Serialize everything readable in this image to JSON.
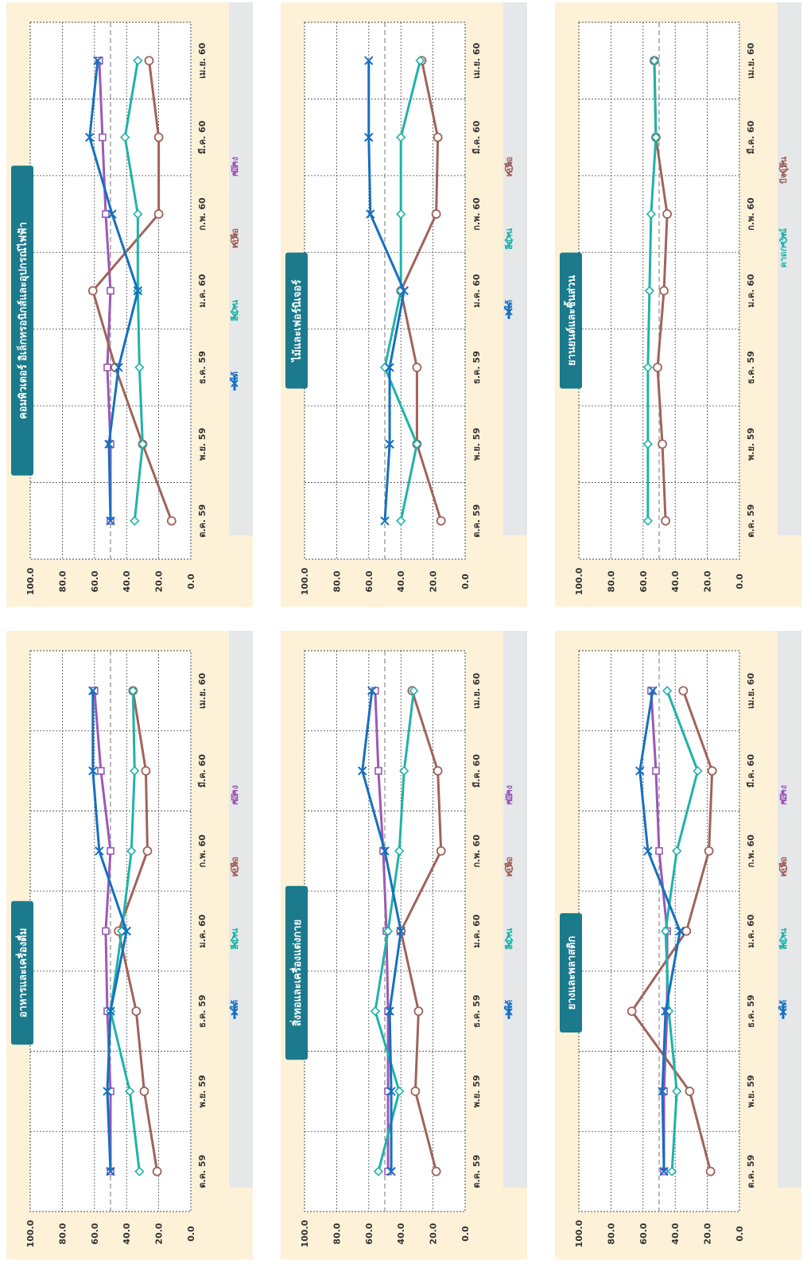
{
  "layout_note": "",
  "colors": {
    "panel_bg": "#fdf1d8",
    "legend_bar": "#e6e7e9",
    "title_bg": "#1b7a8c",
    "grid": "#4a4a4a",
    "threshold": "#8c8c8c",
    "central": "#9b59b6",
    "north": "#a0635a",
    "northeast": "#1fb3a8",
    "south": "#1570c0",
    "present": "#a0635a",
    "future": "#1fb3a8"
  },
  "chart_data": [
    {
      "type": "line",
      "title": "อาหารและเครื่องดื่ม",
      "categories": [
        "ต.ค. 59",
        "พ.ย. 59",
        "ธ.ค. 59",
        "ม.ค. 60",
        "ก.พ. 60",
        "มี.ค. 60",
        "เม.ย. 60"
      ],
      "y_ticks": [
        "0.0",
        "20.0",
        "40.0",
        "60.0",
        "80.0",
        "100.0"
      ],
      "ylim": [
        0,
        100
      ],
      "threshold": 50,
      "legend_position": "bottom",
      "series": [
        {
          "name": "กลาง",
          "color_key": "central",
          "marker": "square",
          "values": [
            50,
            50,
            52,
            53,
            50,
            56,
            60
          ]
        },
        {
          "name": "เหนือ",
          "color_key": "north",
          "marker": "circle",
          "values": [
            21,
            29,
            34,
            45,
            27,
            28,
            36
          ]
        },
        {
          "name": "อีสาน",
          "color_key": "northeast",
          "marker": "diamond",
          "values": [
            32,
            38,
            50,
            43,
            37,
            35,
            36
          ]
        },
        {
          "name": "ใต้",
          "color_key": "south",
          "marker": "x",
          "values": [
            50,
            52,
            50,
            40,
            57,
            61,
            61
          ]
        }
      ]
    },
    {
      "type": "line",
      "title": "คอมพิวเตอร์ อิเล็กทรอนิกส์และอุปกรณ์ไฟฟ้า",
      "categories": [
        "ต.ค. 59",
        "พ.ย. 59",
        "ธ.ค. 59",
        "ม.ค. 60",
        "ก.พ. 60",
        "มี.ค. 60",
        "เม.ย. 60"
      ],
      "y_ticks": [
        "0.0",
        "20.0",
        "40.0",
        "60.0",
        "80.0",
        "100.0"
      ],
      "ylim": [
        0,
        100
      ],
      "threshold": 50,
      "legend_position": "bottom",
      "series": [
        {
          "name": "กลาง",
          "color_key": "central",
          "marker": "square",
          "values": [
            50,
            50,
            52,
            50,
            53,
            55,
            57
          ]
        },
        {
          "name": "เหนือ",
          "color_key": "north",
          "marker": "circle",
          "values": [
            12,
            30,
            47,
            61,
            20,
            20,
            26
          ]
        },
        {
          "name": "อีสาน",
          "color_key": "northeast",
          "marker": "diamond",
          "values": [
            35,
            30,
            32,
            33,
            33,
            41,
            33
          ]
        },
        {
          "name": "ใต้",
          "color_key": "south",
          "marker": "x",
          "values": [
            50,
            51,
            45,
            33,
            49,
            63,
            58
          ]
        }
      ]
    },
    {
      "type": "line",
      "title": "สิ่งทอและเครื่องแต่งกาย",
      "categories": [
        "ต.ค. 59",
        "พ.ย. 59",
        "ธ.ค. 59",
        "ม.ค. 60",
        "ก.พ. 60",
        "มี.ค. 60",
        "เม.ย. 60"
      ],
      "y_ticks": [
        "0.0",
        "20.0",
        "40.0",
        "60.0",
        "80.0",
        "100.0"
      ],
      "ylim": [
        0,
        100
      ],
      "threshold": 50,
      "legend_position": "bottom",
      "series": [
        {
          "name": "กลาง",
          "color_key": "central",
          "marker": "square",
          "values": [
            48,
            48,
            48,
            49,
            51,
            54,
            56
          ]
        },
        {
          "name": "เหนือ",
          "color_key": "north",
          "marker": "circle",
          "values": [
            18,
            31,
            29,
            40,
            15,
            17,
            33
          ]
        },
        {
          "name": "อีสาน",
          "color_key": "northeast",
          "marker": "diamond",
          "values": [
            54,
            41,
            56,
            48,
            41,
            38,
            32
          ]
        },
        {
          "name": "ใต้",
          "color_key": "south",
          "marker": "x",
          "values": [
            46,
            46,
            47,
            40,
            50,
            64,
            58
          ]
        }
      ]
    },
    {
      "type": "line",
      "title": "ไม้และเฟอร์นิเจอร์",
      "categories": [
        "ต.ค. 59",
        "พ.ย. 59",
        "ธ.ค. 59",
        "ม.ค. 60",
        "ก.พ. 60",
        "มี.ค. 60",
        "เม.ย. 60"
      ],
      "y_ticks": [
        "0.0",
        "20.0",
        "40.0",
        "60.0",
        "80.0",
        "100.0"
      ],
      "ylim": [
        0,
        100
      ],
      "threshold": 50,
      "legend_position": "bottom",
      "series": [
        {
          "name": "เหนือ",
          "color_key": "north",
          "marker": "circle",
          "values": [
            15,
            30,
            30,
            40,
            18,
            17,
            27
          ]
        },
        {
          "name": "อีสาน",
          "color_key": "northeast",
          "marker": "diamond",
          "values": [
            40,
            30,
            50,
            40,
            40,
            40,
            28
          ]
        },
        {
          "name": "ใต้",
          "color_key": "south",
          "marker": "x",
          "values": [
            50,
            47,
            47,
            38,
            59,
            60,
            60
          ]
        }
      ]
    },
    {
      "type": "line",
      "title": "ยางและพลาสติก",
      "categories": [
        "ต.ค. 59",
        "พ.ย. 59",
        "ธ.ค. 59",
        "ม.ค. 60",
        "ก.พ. 60",
        "มี.ค. 60",
        "เม.ย. 60"
      ],
      "y_ticks": [
        "0.0",
        "20.0",
        "40.0",
        "60.0",
        "80.0",
        "100.0"
      ],
      "ylim": [
        0,
        100
      ],
      "threshold": 50,
      "legend_position": "bottom",
      "series": [
        {
          "name": "กลาง",
          "color_key": "central",
          "marker": "square",
          "values": [
            47,
            47,
            45,
            45,
            50,
            52,
            55
          ]
        },
        {
          "name": "เหนือ",
          "color_key": "north",
          "marker": "circle",
          "values": [
            18,
            31,
            67,
            33,
            19,
            17,
            35
          ]
        },
        {
          "name": "อีสาน",
          "color_key": "northeast",
          "marker": "diamond",
          "values": [
            42,
            39,
            44,
            46,
            39,
            26,
            45
          ]
        },
        {
          "name": "ใต้",
          "color_key": "south",
          "marker": "x",
          "values": [
            47,
            48,
            46,
            37,
            57,
            62,
            54
          ]
        }
      ]
    },
    {
      "type": "line",
      "title": "ยานยนต์และชิ้นส่วน",
      "categories": [
        "ต.ค. 59",
        "พ.ย. 59",
        "ธ.ค. 59",
        "ม.ค. 60",
        "ก.พ. 60",
        "มี.ค. 60",
        "เม.ย. 60"
      ],
      "y_ticks": [
        "0.0",
        "20.0",
        "40.0",
        "60.0",
        "80.0",
        "100.0"
      ],
      "ylim": [
        0,
        100
      ],
      "threshold": 50,
      "legend_position": "bottom",
      "series": [
        {
          "name": "ปัจจุบัน",
          "color_key": "present",
          "marker": "circle",
          "values": [
            46,
            48,
            51,
            47,
            45,
            52,
            53
          ]
        },
        {
          "name": "คาดการณ์",
          "color_key": "future",
          "marker": "diamond",
          "values": [
            57,
            57,
            57,
            56,
            55,
            52,
            53
          ]
        }
      ]
    }
  ]
}
